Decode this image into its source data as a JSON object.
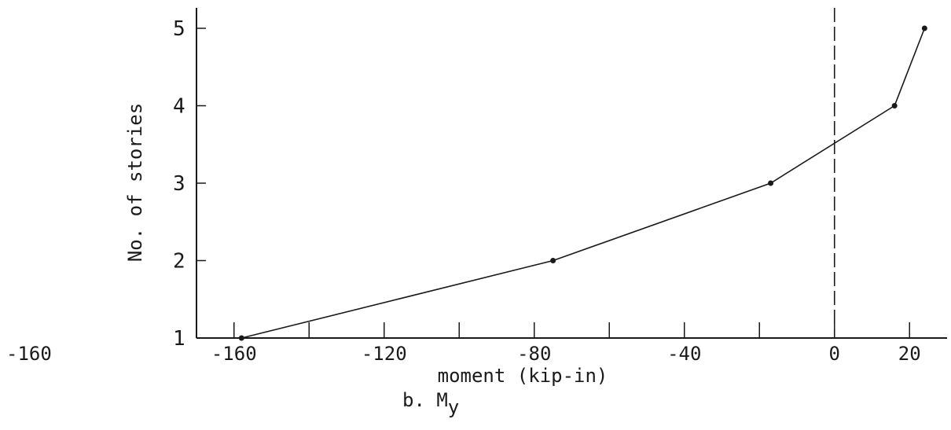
{
  "chart_data": {
    "type": "line",
    "xlabel": "moment (kip-in)",
    "ylabel": "No. of stories",
    "caption_prefix": "b. M",
    "caption_subscript": "y",
    "stray_label": "-160",
    "xlim": [
      -170,
      30
    ],
    "ylim": [
      1,
      5
    ],
    "x_ticks": [
      -160,
      -120,
      -80,
      -40,
      0,
      20
    ],
    "y_ticks": [
      1,
      2,
      3,
      4,
      5
    ],
    "grid": false,
    "reference_line": {
      "x": 0,
      "style": "dashed"
    },
    "series": [
      {
        "x": [
          -158,
          -75,
          -17,
          16,
          24
        ],
        "y": [
          1,
          2,
          3,
          4,
          5
        ]
      }
    ]
  }
}
